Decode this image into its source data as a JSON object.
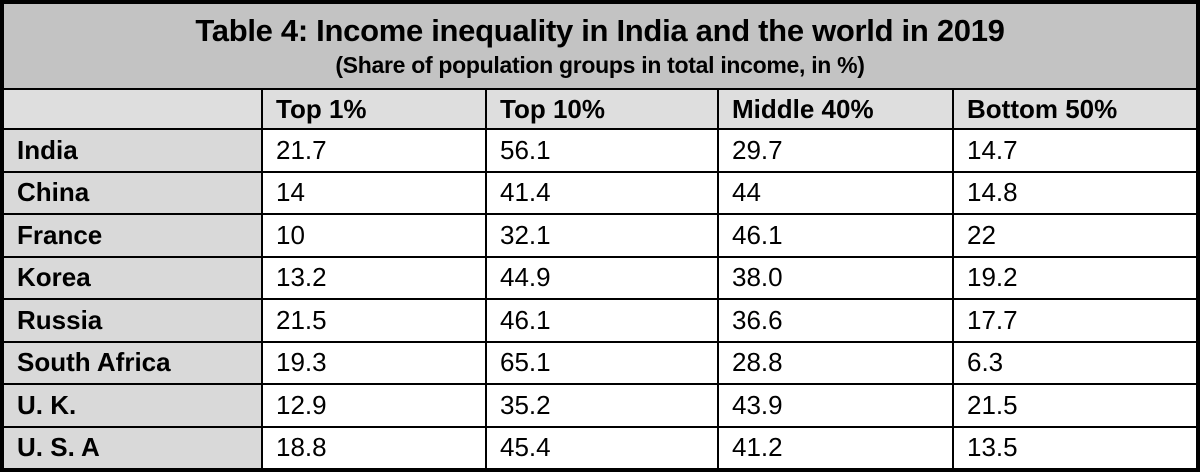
{
  "title": "Table 4: Income inequality in India and the world in 2019",
  "subtitle": "(Share of population groups in total income, in %)",
  "colors": {
    "title_band_bg": "#c3c3c3",
    "header_row_bg": "#dedede",
    "label_column_bg": "#d9d9d9",
    "data_cell_bg": "#ffffff",
    "border": "#000000",
    "text": "#000000"
  },
  "table": {
    "headers": [
      "",
      "Top 1%",
      "Top 10%",
      "Middle 40%",
      "Bottom 50%"
    ],
    "rows": [
      {
        "label": "India",
        "values": [
          "21.7",
          "56.1",
          "29.7",
          "14.7"
        ]
      },
      {
        "label": "China",
        "values": [
          "14",
          "41.4",
          "44",
          "14.8"
        ]
      },
      {
        "label": "France",
        "values": [
          "10",
          "32.1",
          "46.1",
          "22"
        ]
      },
      {
        "label": "Korea",
        "values": [
          "13.2",
          "44.9",
          "38.0",
          "19.2"
        ]
      },
      {
        "label": "Russia",
        "values": [
          "21.5",
          "46.1",
          "36.6",
          "17.7"
        ]
      },
      {
        "label": "South Africa",
        "values": [
          "19.3",
          "65.1",
          "28.8",
          "6.3"
        ]
      },
      {
        "label": "U. K.",
        "values": [
          "12.9",
          "35.2",
          "43.9",
          "21.5"
        ]
      },
      {
        "label": "U. S. A",
        "values": [
          "18.8",
          "45.4",
          "41.2",
          "13.5"
        ]
      }
    ]
  },
  "chart_data": {
    "type": "table",
    "title": "Table 4: Income inequality in India and the world in 2019",
    "subtitle": "(Share of population groups in total income, in %)",
    "unit": "percent of total income",
    "year": "2019",
    "columns": [
      "Top 1%",
      "Top 10%",
      "Middle 40%",
      "Bottom 50%"
    ],
    "row_labels": [
      "India",
      "China",
      "France",
      "Korea",
      "Russia",
      "South Africa",
      "U. K.",
      "U. S. A"
    ],
    "series": [
      {
        "name": "Top 1%",
        "values": [
          21.7,
          14,
          10,
          13.2,
          21.5,
          19.3,
          12.9,
          18.8
        ]
      },
      {
        "name": "Top 10%",
        "values": [
          56.1,
          41.4,
          32.1,
          44.9,
          46.1,
          65.1,
          35.2,
          45.4
        ]
      },
      {
        "name": "Middle 40%",
        "values": [
          29.7,
          44,
          46.1,
          38.0,
          36.6,
          28.8,
          43.9,
          41.2
        ]
      },
      {
        "name": "Bottom 50%",
        "values": [
          14.7,
          14.8,
          22,
          19.2,
          17.7,
          6.3,
          21.5,
          13.5
        ]
      }
    ]
  }
}
